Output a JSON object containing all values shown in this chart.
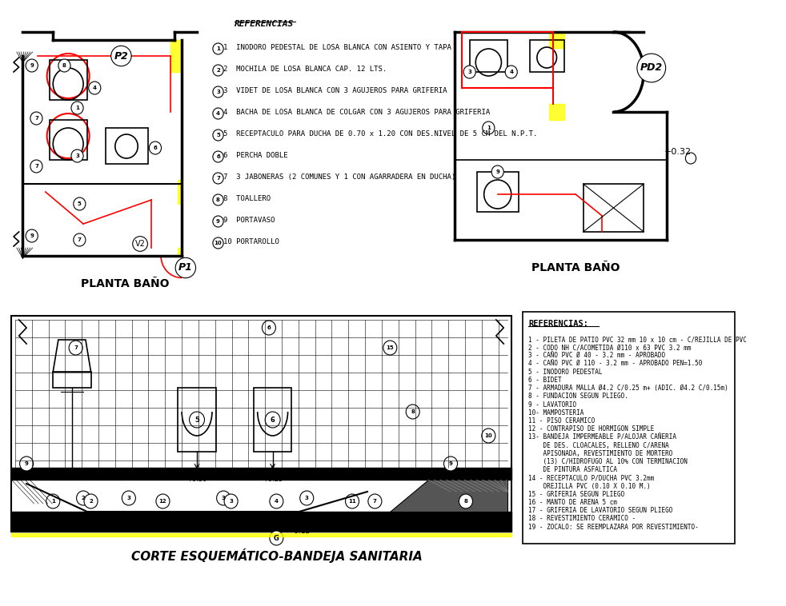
{
  "bg_color": "#ffffff",
  "line_color": "#000000",
  "red_color": "#ff0000",
  "yellow_color": "#ffff00",
  "title_bottom": "CORTE ESQUEMÁTICO-BANDEJA SANITARIA",
  "label_left": "PLANTA BAÑO",
  "label_right": "PLANTA BAÑO",
  "ref_title": "REFERENCIAS",
  "ref_items_left": [
    "1  INODORO PEDESTAL DE LOSA BLANCA CON ASIENTO Y TAPA",
    "2  MOCHILA DE LOSA BLANCA CAP. 12 LTS.",
    "3  VIDET DE LOSA BLANCA CON 3 AGUJEROS PARA GRIFERIA",
    "4  BACHA DE LOSA BLANCA DE COLGAR CON 3 AGUJEROS PARA GRIFERIA",
    "5  RECEPTACULO PARA DUCHA DE 0.70 x 1.20 CON DES.NIVEL DE 5 CM DEL N.P.T.",
    "6  PERCHA DOBLE",
    "7  3 JABONERAS (2 COMUNES Y 1 CON AGARRADERA EN DUCHA)",
    "8  TOALLERO",
    "9  PORTAVASO",
    "10 PORTAROLLO"
  ],
  "ref_items_right": [
    "1 - PILETA DE PATIO PVC 32 mm 10 x 10 cm - C/REJILLA DE PVC",
    "2 - CODO NH C/ACOMETIDA Ø110 x 63 PVC 3.2 mm",
    "3 - CAÑO PVC Ø 40 - 3.2 mm - APROBADO",
    "4 - CAÑO PVC Ø 110 - 3.2 mm - APROBADO PEN=1.50",
    "5 - INODORO PEDESTAL",
    "6 - BIDET",
    "7 - ARMADURA MALLA Ø4.2 C/0.25 m+ (ADIC. Ø4.2 C/0.15m)",
    "8 - FUNDACION SEGUN PLIEGO.",
    "9 - LAVATORIO",
    "10- MAMPOSTERIA",
    "11 - PISO CERAMICO",
    "12 - CONTRAPISO DE HORMIGON SIMPLE",
    "13- BANDEJA IMPERMEABLE P/ALOJAR CAÑERIA",
    "    DE DES. CLOACALES, RELLENO C/ARENA",
    "    APISONADA, REVESTIMIENTO DE MORTERO",
    "    (13) C/HIDROFUGO AL 10% CON TERMINACION",
    "    DE PINTURA ASFALTICA",
    "14 - RECEPTACULO P/DUCHA PVC 3.2mm",
    "    OREJILLA PVC (0.10 X 0.10 M.)",
    "15 - GRIFERIA SEGUN PLIEGO",
    "16 - MANTO DE ARENA 5 cm",
    "17 - GRIFERIA DE LAVATORIO SEGUN PLIEGO",
    "18 - REVESTIMIENTO CERAMICO -",
    "19 - ZOCALO: SE REEMPLAZARA POR REVESTIMIENTO-"
  ]
}
